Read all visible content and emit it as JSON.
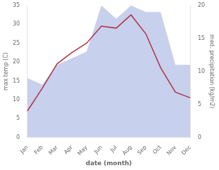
{
  "chart_data": {
    "type": "line",
    "xlabel": "date (month)",
    "ylabel": "max temp (C)",
    "y2label": "med. precipitation (kg/m2)",
    "categories": [
      "Jan",
      "Feb",
      "Mar",
      "Apr",
      "May",
      "Jun",
      "Jul",
      "Aug",
      "Sep",
      "Oct",
      "Nov",
      "Dec"
    ],
    "series": [
      {
        "type": "area",
        "color": "#99aadd",
        "axis": "y2",
        "values": [
          9,
          8,
          11,
          12,
          13,
          20,
          18,
          20,
          19,
          19,
          11,
          11
        ]
      },
      {
        "type": "line",
        "color": "#b03040",
        "values": [
          7.0,
          13.0,
          19.5,
          22.5,
          25.0,
          29.5,
          29.0,
          32.5,
          27.5,
          18.5,
          12.0,
          10.5
        ]
      }
    ],
    "ylim": [
      0,
      35
    ],
    "yticks": [
      0,
      5,
      10,
      15,
      20,
      25,
      30,
      35
    ],
    "y2lim": [
      0,
      20
    ],
    "y2ticks": [
      0,
      5,
      10,
      15,
      20
    ],
    "grid": false
  }
}
